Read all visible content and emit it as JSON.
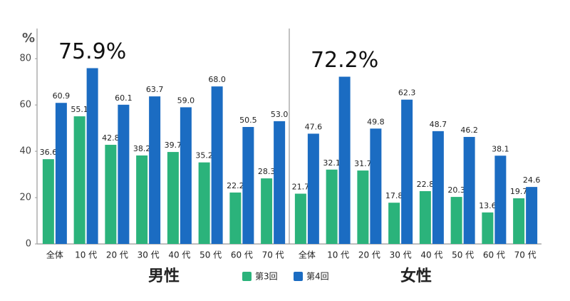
{
  "chart_data": [
    {
      "type": "bar",
      "title": "男性",
      "y_label": "%",
      "categories": [
        "全体",
        "10 代",
        "20 代",
        "30 代",
        "40 代",
        "50 代",
        "60 代",
        "70 代"
      ],
      "series": [
        {
          "name": "第3回",
          "color": "#2bb37b",
          "values": [
            36.6,
            55.1,
            42.8,
            38.2,
            39.7,
            35.2,
            22.2,
            28.3
          ]
        },
        {
          "name": "第4回",
          "color": "#1b6cc2",
          "values": [
            60.9,
            75.9,
            60.1,
            63.7,
            59.0,
            68.0,
            50.5,
            53.0
          ],
          "value_labels": [
            "60.9",
            "75.9%",
            "60.1",
            "63.7",
            "59.0",
            "68.0",
            "50.5",
            "53.0"
          ],
          "highlight": 1
        }
      ],
      "ylim": [
        0,
        93
      ],
      "yticks": [
        0,
        20,
        40,
        60,
        80
      ]
    },
    {
      "type": "bar",
      "title": "女性",
      "categories": [
        "全体",
        "10 代",
        "20 代",
        "30 代",
        "40 代",
        "50 代",
        "60 代",
        "70 代"
      ],
      "series": [
        {
          "color": "#2bb37b",
          "values": [
            21.7,
            32.1,
            31.7,
            17.8,
            22.8,
            20.3,
            13.6,
            19.7
          ]
        },
        {
          "color": "#1b6cc2",
          "values": [
            47.6,
            72.2,
            49.8,
            62.3,
            48.7,
            46.2,
            38.1,
            24.6
          ],
          "value_labels": [
            "47.6",
            "72.2%",
            "49.8",
            "62.3",
            "48.7",
            "46.2",
            "38.1",
            "24.6"
          ],
          "highlight": 1
        }
      ],
      "ylim": [
        0,
        93
      ]
    }
  ]
}
